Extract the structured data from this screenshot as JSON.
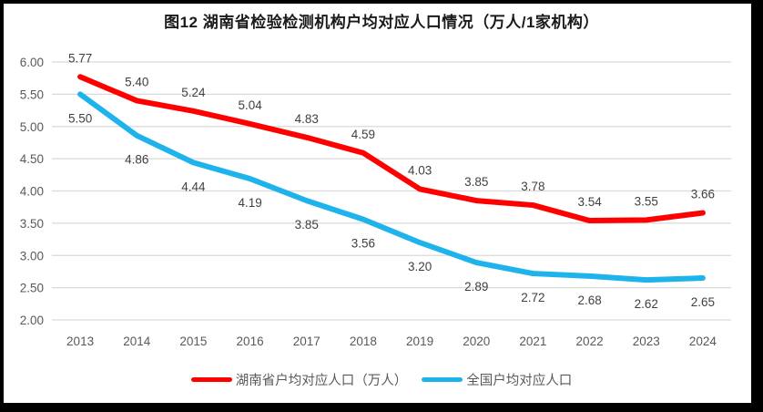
{
  "title": "图12 湖南省检验检测机构户均对应人口情况（万人/1家机构）",
  "chart_data": {
    "type": "line",
    "categories": [
      "2013",
      "2014",
      "2015",
      "2016",
      "2017",
      "2018",
      "2019",
      "2020",
      "2021",
      "2022",
      "2023",
      "2024"
    ],
    "series": [
      {
        "name": "湖南省户均对应人口（万人）",
        "color": "#FF0000",
        "values": [
          5.77,
          5.4,
          5.24,
          5.04,
          4.83,
          4.59,
          4.03,
          3.85,
          3.78,
          3.54,
          3.55,
          3.66
        ],
        "label_position": "above"
      },
      {
        "name": "全国户均对应人口",
        "color": "#1FB3EC",
        "values": [
          5.5,
          4.86,
          4.44,
          4.19,
          3.85,
          3.56,
          3.2,
          2.89,
          2.72,
          2.68,
          2.62,
          2.65
        ],
        "label_position": "below"
      }
    ],
    "title": "图12 湖南省检验检测机构户均对应人口情况（万人/1家机构）",
    "xlabel": "",
    "ylabel": "",
    "y_axis": {
      "min": 2.0,
      "max": 6.0,
      "step": 0.5,
      "tick_format": "0.00"
    },
    "ylim": [
      2.0,
      6.0
    ],
    "grid": true,
    "data_labels": true,
    "legend_position": "bottom"
  },
  "colors": {
    "series_red": "#FF0000",
    "series_blue": "#1FB3EC",
    "gridline": "#D9D9D9",
    "axis_text": "#595959",
    "data_label": "#404040",
    "border": "#000000",
    "background": "#FFFFFF",
    "title_text": "#1A1A1A"
  }
}
